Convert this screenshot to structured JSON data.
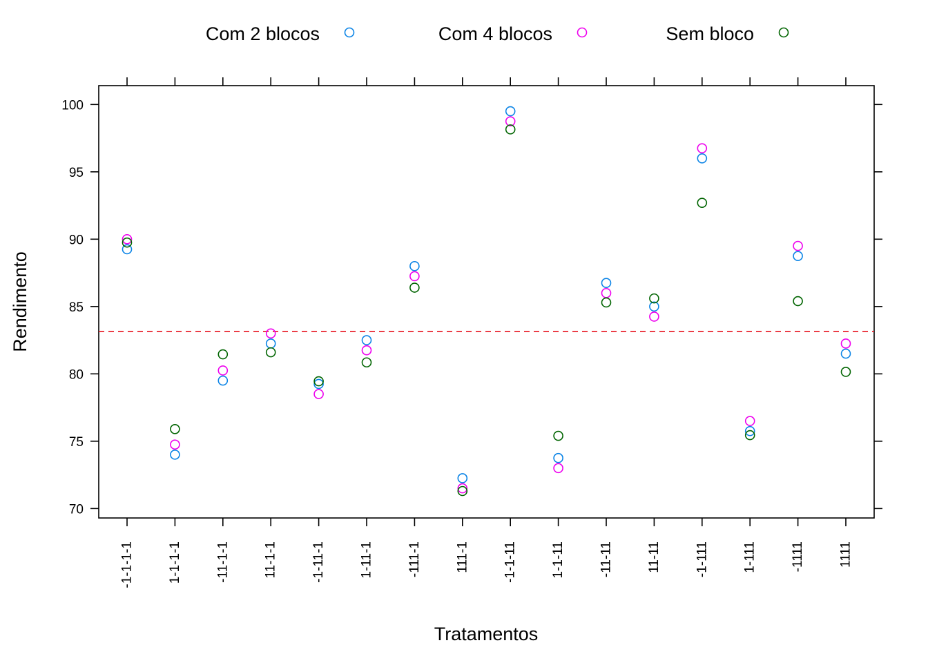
{
  "chart_data": {
    "type": "scatter",
    "xlabel": "Tratamentos",
    "ylabel": "Rendimento",
    "ylim": [
      69.3,
      101.4
    ],
    "yticks": [
      70,
      75,
      80,
      85,
      90,
      95,
      100
    ],
    "categories": [
      "-1-1-1-1",
      "1-1-1-1",
      "-11-1-1",
      "11-1-1",
      "-1-11-1",
      "1-11-1",
      "-111-1",
      "111-1",
      "-1-1-11",
      "1-1-11",
      "-11-11",
      "11-11",
      "-1-111",
      "1-111",
      "-1111",
      "1111"
    ],
    "reference_line": {
      "value": 83.15,
      "style": "dashed",
      "color": "#e8212b"
    },
    "legend_position": "top",
    "series": [
      {
        "name": "Com 2 blocos",
        "color": "#0b84e6",
        "values": [
          89.25,
          74.0,
          79.5,
          82.25,
          79.25,
          82.5,
          88.0,
          72.25,
          99.5,
          73.75,
          86.75,
          85.0,
          96.0,
          75.75,
          88.75,
          81.5
        ]
      },
      {
        "name": "Com 4 blocos",
        "color": "#ee00ee",
        "values": [
          90.0,
          74.75,
          80.25,
          83.0,
          78.5,
          81.75,
          87.25,
          71.5,
          98.75,
          73.0,
          86.0,
          84.25,
          96.75,
          76.5,
          89.5,
          82.25
        ]
      },
      {
        "name": "Sem bloco",
        "color": "#006400",
        "values": [
          89.75,
          75.9,
          81.45,
          81.6,
          79.45,
          80.85,
          86.4,
          71.3,
          98.15,
          75.4,
          85.3,
          85.6,
          92.7,
          75.45,
          85.4,
          80.15
        ]
      }
    ]
  }
}
